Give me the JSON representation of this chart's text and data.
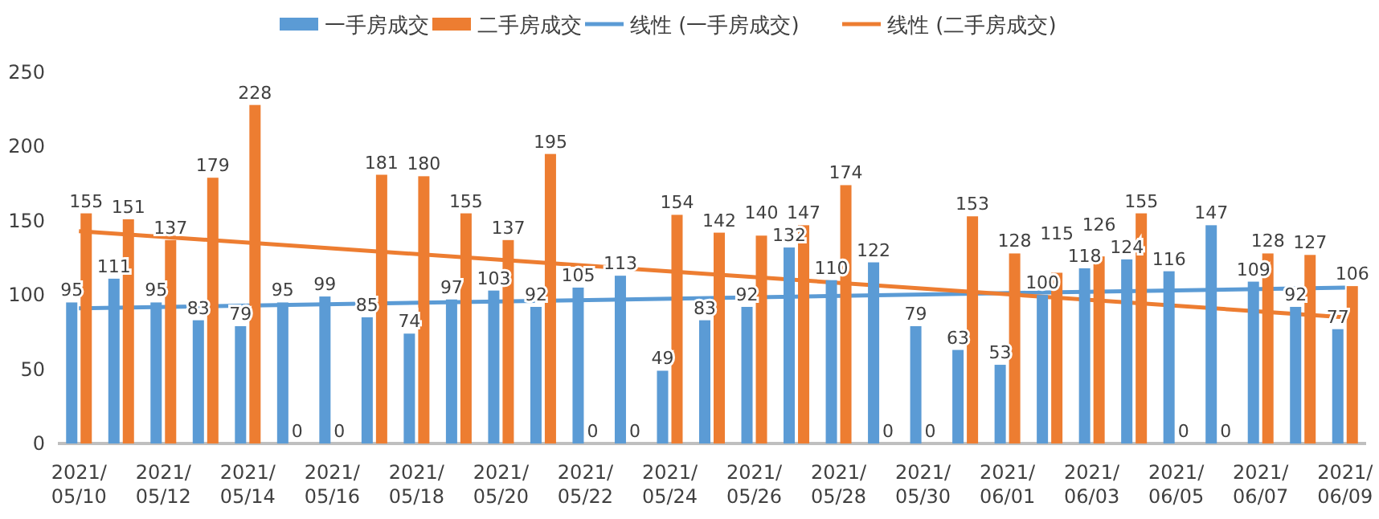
{
  "chart_data": {
    "type": "bar",
    "categories": [
      "2021/\n05/10",
      null,
      "2021/\n05/12",
      null,
      "2021/\n05/14",
      null,
      "2021/\n05/16",
      null,
      "2021/\n05/18",
      null,
      "2021/\n05/20",
      null,
      "2021/\n05/22",
      null,
      "2021/\n05/24",
      null,
      "2021/\n05/26",
      null,
      "2021/\n05/28",
      null,
      "2021/\n05/30",
      null,
      "2021/\n06/01",
      null,
      "2021/\n06/03",
      null,
      "2021/\n06/05",
      null,
      "2021/\n06/07",
      null,
      "2021/\n06/09"
    ],
    "series": [
      {
        "name": "一手房成交",
        "color": "#5b9bd5",
        "values": [
          95,
          111,
          95,
          83,
          79,
          95,
          99,
          85,
          74,
          97,
          103,
          92,
          105,
          113,
          49,
          83,
          92,
          132,
          110,
          122,
          79,
          63,
          53,
          100,
          118,
          124,
          116,
          147,
          109,
          92,
          77
        ],
        "value_labels": [
          "95",
          "111",
          "95",
          "83",
          "79",
          "95",
          "99",
          "85",
          "74",
          "97",
          "103",
          "92",
          "105",
          "113",
          "49",
          "83",
          "92",
          "132",
          "110",
          "122",
          "79",
          "63",
          "53",
          "100",
          "118",
          "124",
          "116",
          "147",
          "109",
          "92",
          "77"
        ]
      },
      {
        "name": "二手房成交",
        "color": "#ed7d31",
        "values": [
          155,
          151,
          137,
          179,
          228,
          0,
          0,
          181,
          180,
          155,
          137,
          195,
          0,
          0,
          154,
          142,
          140,
          147,
          174,
          0,
          0,
          153,
          128,
          115,
          126,
          155,
          0,
          0,
          128,
          127,
          106
        ],
        "value_labels": [
          "155",
          "151",
          "137",
          "179",
          "228",
          "0",
          "0",
          "181",
          "180",
          "155",
          "137",
          "195",
          "0",
          "0",
          "154",
          "142",
          "140",
          "147",
          "174",
          "0",
          "0",
          "153",
          "128",
          "115",
          "126",
          "155",
          "0",
          "0",
          "128",
          "127",
          "106"
        ]
      },
      {
        "name": "线性 (一手房成交)",
        "type": "line",
        "color": "#5b9bd5",
        "x": [
          "2021/\n05/10",
          "2021/\n06/09"
        ],
        "values": [
          91,
          105
        ]
      },
      {
        "name": "线性 (二手房成交)",
        "type": "line",
        "color": "#ed7d31",
        "x": [
          "2021/\n05/10",
          "2021/\n06/09"
        ],
        "values": [
          143,
          85
        ]
      }
    ],
    "ylim": [
      0,
      250
    ],
    "yticks": [
      0,
      50,
      100,
      150,
      200,
      250
    ],
    "legend": "top"
  }
}
